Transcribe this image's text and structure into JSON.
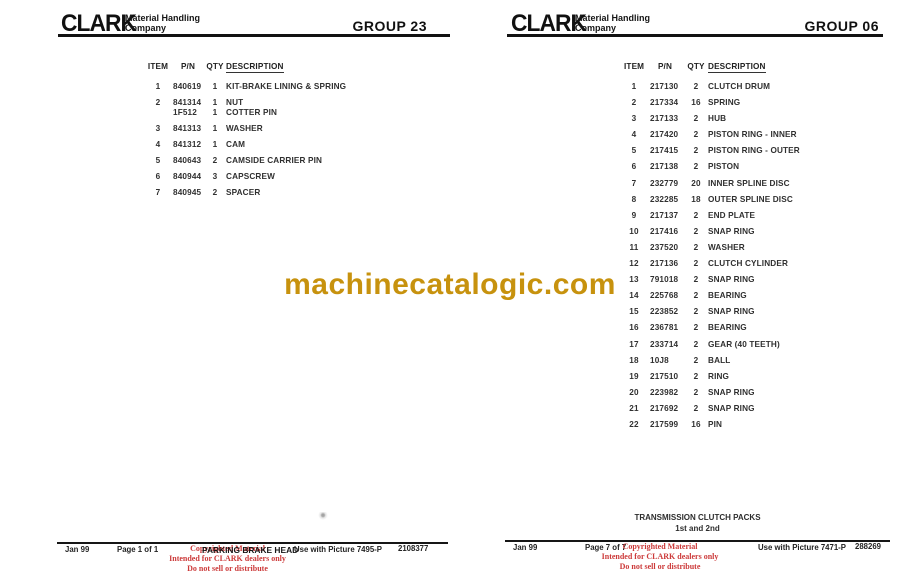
{
  "colors": {
    "watermark": "#C7920E",
    "copyright_red": "#CC3A3A",
    "ink": "#1a1a1a"
  },
  "watermark": {
    "text": "machinecatalogic.com"
  },
  "pages": [
    {
      "header": {
        "logo_text": "CLARK",
        "tagline_line1": "Material Handling",
        "tagline_line2": "Company",
        "group": "GROUP 23"
      },
      "table": {
        "headers": [
          "ITEM",
          "P/N",
          "QTY",
          "DESCRIPTION"
        ],
        "rows": [
          {
            "item": "1",
            "lines": [
              {
                "pn": "840619",
                "qty": "1",
                "desc": "KIT-BRAKE LINING & SPRING"
              }
            ]
          },
          {
            "item": "2",
            "lines": [
              {
                "pn": "841314",
                "qty": "1",
                "desc": "NUT"
              },
              {
                "pn": "1F512",
                "qty": "1",
                "desc": "COTTER PIN"
              }
            ]
          },
          {
            "item": "3",
            "lines": [
              {
                "pn": "841313",
                "qty": "1",
                "desc": "WASHER"
              }
            ]
          },
          {
            "item": "4",
            "lines": [
              {
                "pn": "841312",
                "qty": "1",
                "desc": "CAM"
              }
            ]
          },
          {
            "item": "5",
            "lines": [
              {
                "pn": "840643",
                "qty": "2",
                "desc": "CAMSIDE CARRIER PIN"
              }
            ]
          },
          {
            "item": "6",
            "lines": [
              {
                "pn": "840944",
                "qty": "3",
                "desc": "CAPSCREW"
              }
            ]
          },
          {
            "item": "7",
            "lines": [
              {
                "pn": "840945",
                "qty": "2",
                "desc": "SPACER"
              }
            ]
          }
        ]
      },
      "footer": {
        "date": "Jan 99",
        "page": "Page 1 of 1",
        "title": "PARKING BRAKE HEAD",
        "use_with": "Use with Picture 7495-P",
        "doc_number": "2108377",
        "copyright_line1": "Copyrighted Material",
        "copyright_line2": "Intended for CLARK dealers only",
        "copyright_line3": "Do not sell or distribute"
      }
    },
    {
      "header": {
        "logo_text": "CLARK",
        "tagline_line1": "Material Handling",
        "tagline_line2": "Company",
        "group": "GROUP 06"
      },
      "table": {
        "headers": [
          "ITEM",
          "P/N",
          "QTY",
          "DESCRIPTION"
        ],
        "rows": [
          {
            "item": "1",
            "lines": [
              {
                "pn": "217130",
                "qty": "2",
                "desc": "CLUTCH DRUM"
              }
            ]
          },
          {
            "item": "2",
            "lines": [
              {
                "pn": "217334",
                "qty": "16",
                "desc": "SPRING"
              }
            ]
          },
          {
            "item": "3",
            "lines": [
              {
                "pn": "217133",
                "qty": "2",
                "desc": "HUB"
              }
            ]
          },
          {
            "item": "4",
            "lines": [
              {
                "pn": "217420",
                "qty": "2",
                "desc": "PISTON RING - INNER"
              }
            ]
          },
          {
            "item": "5",
            "lines": [
              {
                "pn": "217415",
                "qty": "2",
                "desc": "PISTON RING - OUTER"
              }
            ]
          },
          {
            "item": "6",
            "lines": [
              {
                "pn": "217138",
                "qty": "2",
                "desc": "PISTON"
              }
            ]
          },
          {
            "item": "7",
            "lines": [
              {
                "pn": "232779",
                "qty": "20",
                "desc": "INNER SPLINE DISC"
              }
            ]
          },
          {
            "item": "8",
            "lines": [
              {
                "pn": "232285",
                "qty": "18",
                "desc": "OUTER SPLINE DISC"
              }
            ]
          },
          {
            "item": "9",
            "lines": [
              {
                "pn": "217137",
                "qty": "2",
                "desc": "END PLATE"
              }
            ]
          },
          {
            "item": "10",
            "lines": [
              {
                "pn": "217416",
                "qty": "2",
                "desc": "SNAP RING"
              }
            ]
          },
          {
            "item": "11",
            "lines": [
              {
                "pn": "237520",
                "qty": "2",
                "desc": "WASHER"
              }
            ]
          },
          {
            "item": "12",
            "lines": [
              {
                "pn": "217136",
                "qty": "2",
                "desc": "CLUTCH CYLINDER"
              }
            ]
          },
          {
            "item": "13",
            "lines": [
              {
                "pn": "791018",
                "qty": "2",
                "desc": "SNAP RING"
              }
            ]
          },
          {
            "item": "14",
            "lines": [
              {
                "pn": "225768",
                "qty": "2",
                "desc": "BEARING"
              }
            ]
          },
          {
            "item": "15",
            "lines": [
              {
                "pn": "223852",
                "qty": "2",
                "desc": "SNAP RING"
              }
            ]
          },
          {
            "item": "16",
            "lines": [
              {
                "pn": "236781",
                "qty": "2",
                "desc": "BEARING"
              }
            ]
          },
          {
            "item": "17",
            "lines": [
              {
                "pn": "233714",
                "qty": "2",
                "desc": "GEAR (40 TEETH)"
              }
            ]
          },
          {
            "item": "18",
            "lines": [
              {
                "pn": "10J8",
                "qty": "2",
                "desc": "BALL"
              }
            ]
          },
          {
            "item": "19",
            "lines": [
              {
                "pn": "217510",
                "qty": "2",
                "desc": "RING"
              }
            ]
          },
          {
            "item": "20",
            "lines": [
              {
                "pn": "223982",
                "qty": "2",
                "desc": "SNAP RING"
              }
            ]
          },
          {
            "item": "21",
            "lines": [
              {
                "pn": "217692",
                "qty": "2",
                "desc": "SNAP RING"
              }
            ]
          },
          {
            "item": "22",
            "lines": [
              {
                "pn": "217599",
                "qty": "16",
                "desc": "PIN"
              }
            ]
          }
        ]
      },
      "section": {
        "title": "TRANSMISSION CLUTCH PACKS",
        "subtitle": "1st and 2nd"
      },
      "footer": {
        "date": "Jan 99",
        "page": "Page 7 of 7",
        "use_with": "Use with Picture 7471-P",
        "doc_number": "288269",
        "copyright_line1": "Copyrighted Material",
        "copyright_line2": "Intended for CLARK dealers only",
        "copyright_line3": "Do not sell or distribute"
      }
    }
  ]
}
